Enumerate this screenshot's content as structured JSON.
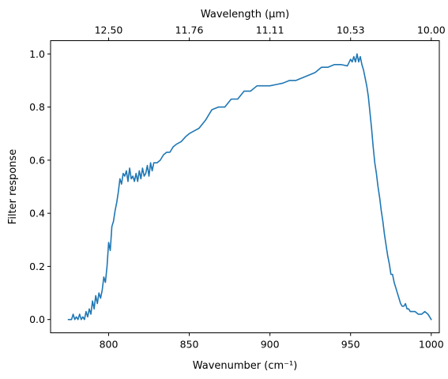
{
  "chart_data": {
    "type": "line",
    "xlabel": "Wavenumber (cm⁻¹)",
    "ylabel": "Filter response",
    "top_xlabel": "Wavelength (μm)",
    "xlim": [
      764,
      1005
    ],
    "ylim": [
      -0.05,
      1.05
    ],
    "grid": false,
    "legend": "none",
    "x_ticks": [
      {
        "value": 800,
        "label": "800"
      },
      {
        "value": 850,
        "label": "850"
      },
      {
        "value": 900,
        "label": "900"
      },
      {
        "value": 950,
        "label": "950"
      },
      {
        "value": 1000,
        "label": "1000"
      }
    ],
    "y_ticks": [
      {
        "value": 0.0,
        "label": "0.0"
      },
      {
        "value": 0.2,
        "label": "0.2"
      },
      {
        "value": 0.4,
        "label": "0.4"
      },
      {
        "value": 0.6,
        "label": "0.6"
      },
      {
        "value": 0.8,
        "label": "0.8"
      },
      {
        "value": 1.0,
        "label": "1.0"
      }
    ],
    "top_ticks": [
      {
        "value": 800,
        "label": "12.50"
      },
      {
        "value": 850,
        "label": "11.76"
      },
      {
        "value": 900,
        "label": "11.11"
      },
      {
        "value": 950,
        "label": "10.53"
      },
      {
        "value": 1000,
        "label": "10.00"
      }
    ],
    "series": [
      {
        "color": "#1f77b4",
        "x": [
          775,
          777,
          778,
          779,
          780,
          781,
          782,
          783,
          784,
          785,
          786,
          787,
          788,
          789,
          790,
          791,
          792,
          793,
          794,
          795,
          796,
          797,
          798,
          799,
          800,
          801,
          802,
          803,
          804,
          805,
          806,
          807,
          808,
          809,
          810,
          811,
          812,
          813,
          814,
          815,
          816,
          817,
          818,
          819,
          820,
          821,
          822,
          823,
          824,
          825,
          826,
          827,
          828,
          830,
          832,
          834,
          836,
          838,
          840,
          842,
          845,
          848,
          850,
          853,
          856,
          860,
          864,
          868,
          872,
          876,
          880,
          884,
          888,
          892,
          896,
          900,
          904,
          908,
          912,
          916,
          920,
          924,
          928,
          932,
          936,
          940,
          944,
          948,
          950,
          951,
          952,
          953,
          954,
          955,
          956,
          957,
          958,
          959,
          960,
          961,
          962,
          963,
          964,
          965,
          966,
          967,
          968,
          969,
          970,
          971,
          972,
          973,
          974,
          975,
          976,
          977,
          978,
          979,
          980,
          981,
          982,
          983,
          984,
          985,
          986,
          987,
          988,
          990,
          992,
          994,
          996,
          998,
          999,
          1000
        ],
        "values": [
          0.0,
          0.0,
          0.02,
          0.0,
          0.01,
          0.0,
          0.02,
          0.0,
          0.01,
          0.0,
          0.03,
          0.01,
          0.04,
          0.02,
          0.07,
          0.04,
          0.09,
          0.06,
          0.1,
          0.08,
          0.11,
          0.16,
          0.14,
          0.2,
          0.29,
          0.26,
          0.35,
          0.37,
          0.41,
          0.44,
          0.48,
          0.53,
          0.51,
          0.55,
          0.54,
          0.56,
          0.52,
          0.57,
          0.53,
          0.54,
          0.52,
          0.55,
          0.52,
          0.56,
          0.53,
          0.57,
          0.54,
          0.55,
          0.58,
          0.54,
          0.59,
          0.56,
          0.59,
          0.59,
          0.6,
          0.62,
          0.63,
          0.63,
          0.65,
          0.66,
          0.67,
          0.69,
          0.7,
          0.71,
          0.72,
          0.75,
          0.79,
          0.8,
          0.8,
          0.83,
          0.83,
          0.86,
          0.86,
          0.88,
          0.88,
          0.88,
          0.885,
          0.89,
          0.9,
          0.9,
          0.91,
          0.92,
          0.93,
          0.95,
          0.95,
          0.96,
          0.96,
          0.955,
          0.98,
          0.97,
          0.99,
          0.97,
          1.0,
          0.97,
          0.99,
          0.96,
          0.94,
          0.91,
          0.88,
          0.84,
          0.78,
          0.72,
          0.65,
          0.59,
          0.55,
          0.5,
          0.46,
          0.41,
          0.37,
          0.32,
          0.28,
          0.24,
          0.21,
          0.17,
          0.17,
          0.14,
          0.12,
          0.1,
          0.08,
          0.06,
          0.05,
          0.05,
          0.06,
          0.04,
          0.04,
          0.03,
          0.03,
          0.03,
          0.02,
          0.02,
          0.03,
          0.02,
          0.01,
          0.0
        ]
      }
    ]
  }
}
